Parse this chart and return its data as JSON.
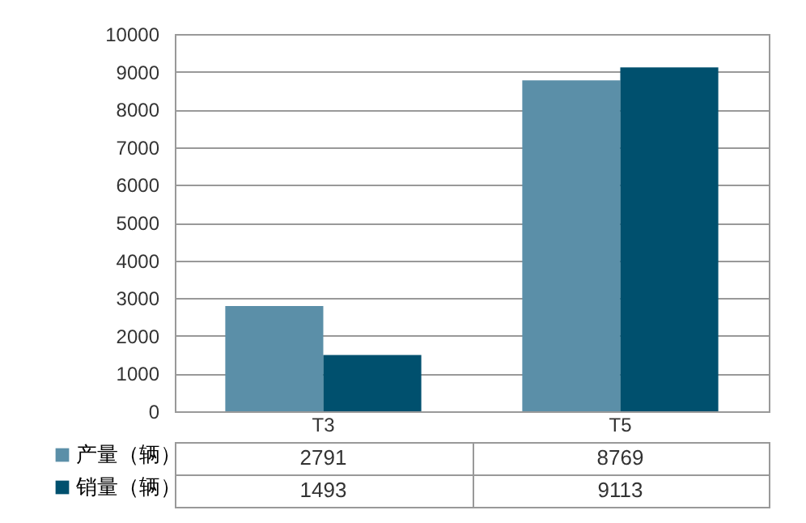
{
  "chart_data": {
    "type": "bar",
    "categories": [
      "T3",
      "T5"
    ],
    "series": [
      {
        "name": "产量（辆）",
        "color": "#5b8fa8",
        "values": [
          2791,
          8769
        ]
      },
      {
        "name": "销量（辆）",
        "color": "#00506e",
        "values": [
          1493,
          9113
        ]
      }
    ],
    "ylim": [
      0,
      10000
    ],
    "yticks": [
      0,
      1000,
      2000,
      3000,
      4000,
      5000,
      6000,
      7000,
      8000,
      9000,
      10000
    ],
    "grid": "y",
    "legend": "bottom left",
    "data_labels": true
  }
}
